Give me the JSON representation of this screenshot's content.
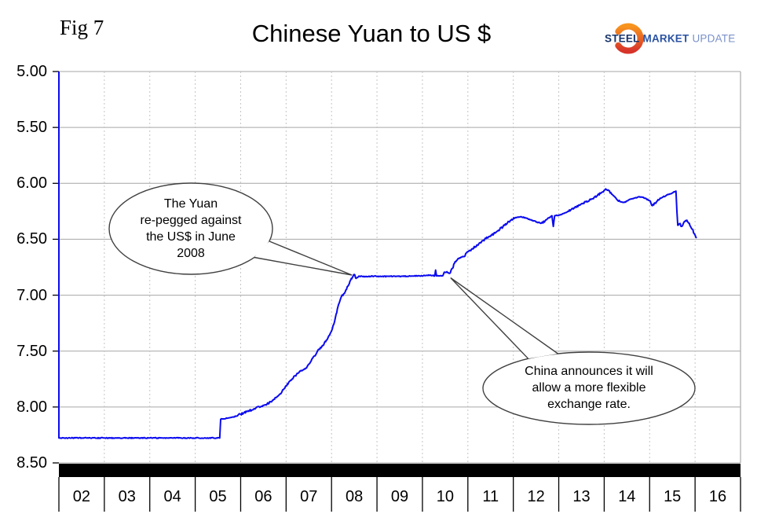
{
  "figure": {
    "fig_label": "Fig 7",
    "title": "Chinese Yuan to US $"
  },
  "logo": {
    "steel": "STEEL",
    "market": "MARKET",
    "update": "UPDATE",
    "colors": {
      "steel": "#17356B",
      "market": "#2A52A2",
      "update": "#7A90C8",
      "crescent_top": "#F7941E",
      "crescent_bottom": "#D7342A"
    }
  },
  "chart_data": {
    "type": "line",
    "title": "Chinese Yuan to US $",
    "series_name": "Chinese Yuan per US Dollar",
    "y_axis": {
      "min": 5.0,
      "max": 8.5,
      "step": 0.5,
      "inverted": true,
      "tick_labels": [
        "5.00",
        "5.50",
        "6.00",
        "6.50",
        "7.00",
        "7.50",
        "8.00",
        "8.50"
      ]
    },
    "x_axis": {
      "start": 2002,
      "end": 2017,
      "tick_labels": [
        "02",
        "03",
        "04",
        "05",
        "06",
        "07",
        "08",
        "09",
        "10",
        "11",
        "12",
        "13",
        "14",
        "15",
        "16"
      ]
    },
    "grid": {
      "horizontal": "solid",
      "vertical": "dashed"
    },
    "legend": "none",
    "colors": {
      "line": "#0a0af0",
      "h_grid": "#a6a6a6",
      "v_grid": "#c4c4c4",
      "right_border": "#b0b0b0",
      "axis_bar": "#000000",
      "tick": "#000000",
      "callout_stroke": "#404040"
    },
    "points": [
      [
        2002.0,
        5.0
      ],
      [
        2002.0,
        8.277
      ],
      [
        2002.5,
        8.277
      ],
      [
        2003.0,
        8.277
      ],
      [
        2003.5,
        8.277
      ],
      [
        2004.0,
        8.277
      ],
      [
        2004.5,
        8.277
      ],
      [
        2005.0,
        8.277
      ],
      [
        2005.54,
        8.277
      ],
      [
        2005.56,
        8.11
      ],
      [
        2005.7,
        8.1
      ],
      [
        2005.85,
        8.09
      ],
      [
        2006.0,
        8.065
      ],
      [
        2006.15,
        8.04
      ],
      [
        2006.3,
        8.015
      ],
      [
        2006.45,
        7.995
      ],
      [
        2006.55,
        7.98
      ],
      [
        2006.7,
        7.94
      ],
      [
        2006.85,
        7.89
      ],
      [
        2007.0,
        7.81
      ],
      [
        2007.1,
        7.76
      ],
      [
        2007.2,
        7.72
      ],
      [
        2007.3,
        7.68
      ],
      [
        2007.42,
        7.66
      ],
      [
        2007.55,
        7.59
      ],
      [
        2007.68,
        7.51
      ],
      [
        2007.8,
        7.45
      ],
      [
        2007.9,
        7.4
      ],
      [
        2008.0,
        7.32
      ],
      [
        2008.05,
        7.26
      ],
      [
        2008.1,
        7.17
      ],
      [
        2008.17,
        7.07
      ],
      [
        2008.22,
        7.01
      ],
      [
        2008.3,
        6.97
      ],
      [
        2008.36,
        6.92
      ],
      [
        2008.42,
        6.865
      ],
      [
        2008.46,
        6.84
      ],
      [
        2008.5,
        6.815
      ],
      [
        2008.54,
        6.85
      ],
      [
        2008.6,
        6.83
      ],
      [
        2008.75,
        6.835
      ],
      [
        2008.9,
        6.83
      ],
      [
        2009.1,
        6.833
      ],
      [
        2009.3,
        6.83
      ],
      [
        2009.5,
        6.832
      ],
      [
        2009.7,
        6.83
      ],
      [
        2009.9,
        6.828
      ],
      [
        2010.05,
        6.825
      ],
      [
        2010.18,
        6.82
      ],
      [
        2010.27,
        6.828
      ],
      [
        2010.29,
        6.775
      ],
      [
        2010.31,
        6.828
      ],
      [
        2010.4,
        6.826
      ],
      [
        2010.45,
        6.825
      ],
      [
        2010.48,
        6.795
      ],
      [
        2010.54,
        6.79
      ],
      [
        2010.6,
        6.805
      ],
      [
        2010.66,
        6.76
      ],
      [
        2010.72,
        6.7
      ],
      [
        2010.78,
        6.675
      ],
      [
        2010.85,
        6.66
      ],
      [
        2010.92,
        6.655
      ],
      [
        2011.0,
        6.61
      ],
      [
        2011.08,
        6.59
      ],
      [
        2011.17,
        6.565
      ],
      [
        2011.27,
        6.53
      ],
      [
        2011.37,
        6.5
      ],
      [
        2011.47,
        6.475
      ],
      [
        2011.57,
        6.45
      ],
      [
        2011.67,
        6.42
      ],
      [
        2011.77,
        6.39
      ],
      [
        2011.87,
        6.355
      ],
      [
        2011.95,
        6.33
      ],
      [
        2012.05,
        6.305
      ],
      [
        2012.15,
        6.3
      ],
      [
        2012.25,
        6.305
      ],
      [
        2012.35,
        6.32
      ],
      [
        2012.45,
        6.335
      ],
      [
        2012.55,
        6.35
      ],
      [
        2012.62,
        6.355
      ],
      [
        2012.7,
        6.335
      ],
      [
        2012.78,
        6.31
      ],
      [
        2012.85,
        6.29
      ],
      [
        2012.88,
        6.385
      ],
      [
        2012.91,
        6.29
      ],
      [
        2013.0,
        6.285
      ],
      [
        2013.1,
        6.27
      ],
      [
        2013.22,
        6.25
      ],
      [
        2013.35,
        6.22
      ],
      [
        2013.48,
        6.19
      ],
      [
        2013.6,
        6.165
      ],
      [
        2013.72,
        6.14
      ],
      [
        2013.85,
        6.11
      ],
      [
        2013.95,
        6.08
      ],
      [
        2014.03,
        6.05
      ],
      [
        2014.1,
        6.065
      ],
      [
        2014.18,
        6.1
      ],
      [
        2014.27,
        6.14
      ],
      [
        2014.36,
        6.165
      ],
      [
        2014.44,
        6.17
      ],
      [
        2014.52,
        6.155
      ],
      [
        2014.6,
        6.14
      ],
      [
        2014.68,
        6.13
      ],
      [
        2014.76,
        6.12
      ],
      [
        2014.85,
        6.125
      ],
      [
        2014.93,
        6.14
      ],
      [
        2015.0,
        6.155
      ],
      [
        2015.06,
        6.2
      ],
      [
        2015.12,
        6.175
      ],
      [
        2015.2,
        6.15
      ],
      [
        2015.28,
        6.125
      ],
      [
        2015.36,
        6.11
      ],
      [
        2015.44,
        6.095
      ],
      [
        2015.52,
        6.08
      ],
      [
        2015.58,
        6.07
      ],
      [
        2015.6,
        6.25
      ],
      [
        2015.62,
        6.375
      ],
      [
        2015.66,
        6.36
      ],
      [
        2015.7,
        6.385
      ],
      [
        2015.74,
        6.36
      ],
      [
        2015.78,
        6.34
      ],
      [
        2015.82,
        6.33
      ],
      [
        2015.86,
        6.355
      ],
      [
        2015.9,
        6.385
      ],
      [
        2015.94,
        6.41
      ],
      [
        2015.98,
        6.45
      ],
      [
        2016.03,
        6.49
      ]
    ],
    "annotations": [
      {
        "text": "The Yuan\nre-pegged against\nthe US$ in June\n2008",
        "target_year": 2008.45,
        "target_value": 6.82
      },
      {
        "text": "China announces it will\nallow a more flexible\nexchange rate.",
        "target_year": 2010.62,
        "target_value": 6.845
      }
    ]
  }
}
